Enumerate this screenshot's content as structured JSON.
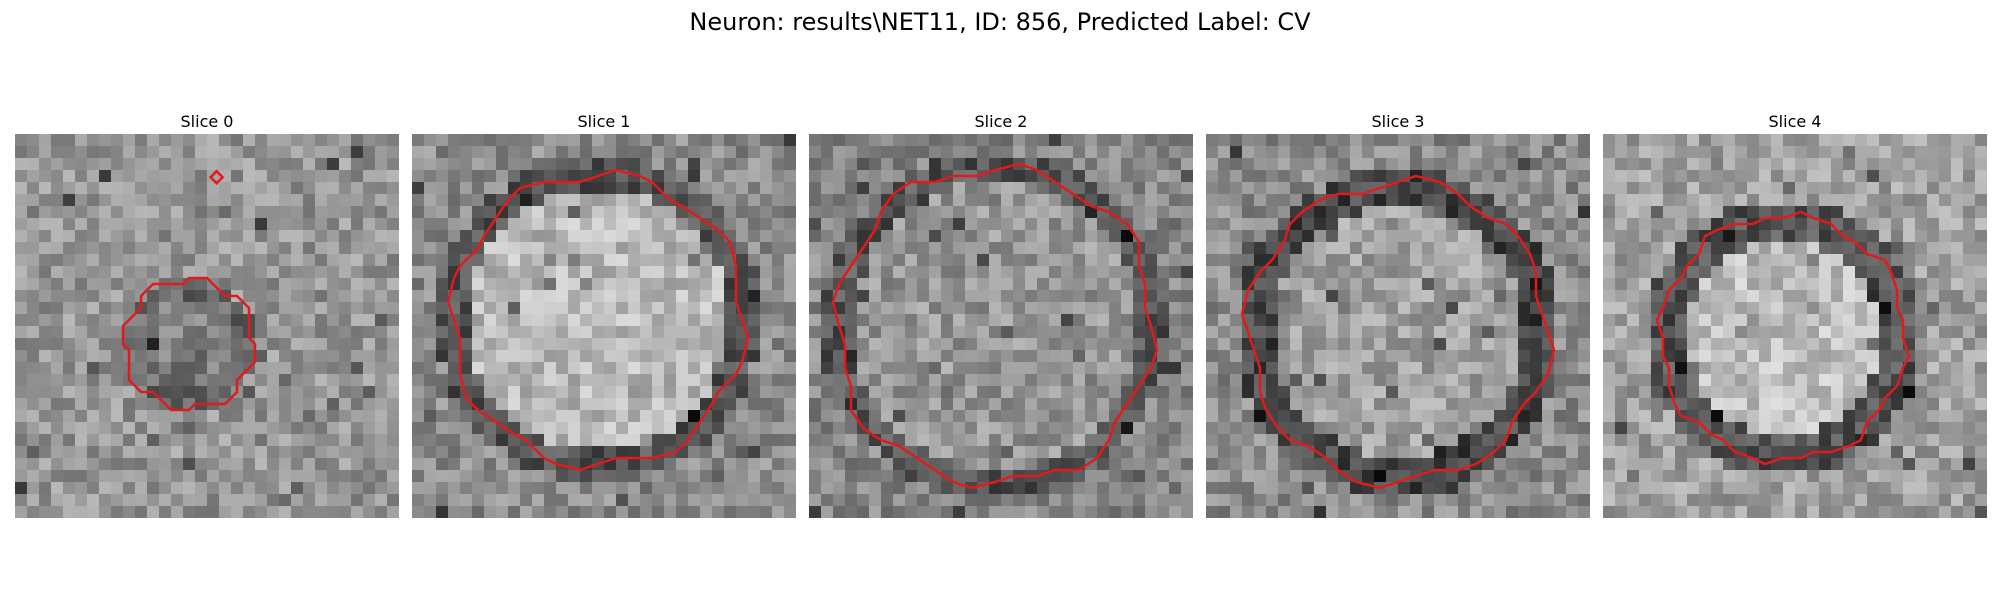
{
  "figure": {
    "title": "Neuron: results\\NET11, ID: 856, Predicted Label: CV"
  },
  "panels": [
    {
      "title": "Slice 0"
    },
    {
      "title": "Slice 1"
    },
    {
      "title": "Slice 2"
    },
    {
      "title": "Slice 3"
    },
    {
      "title": "Slice 4"
    }
  ],
  "style": {
    "contour_color": "#e31a1c",
    "colormap": "grayscale"
  }
}
